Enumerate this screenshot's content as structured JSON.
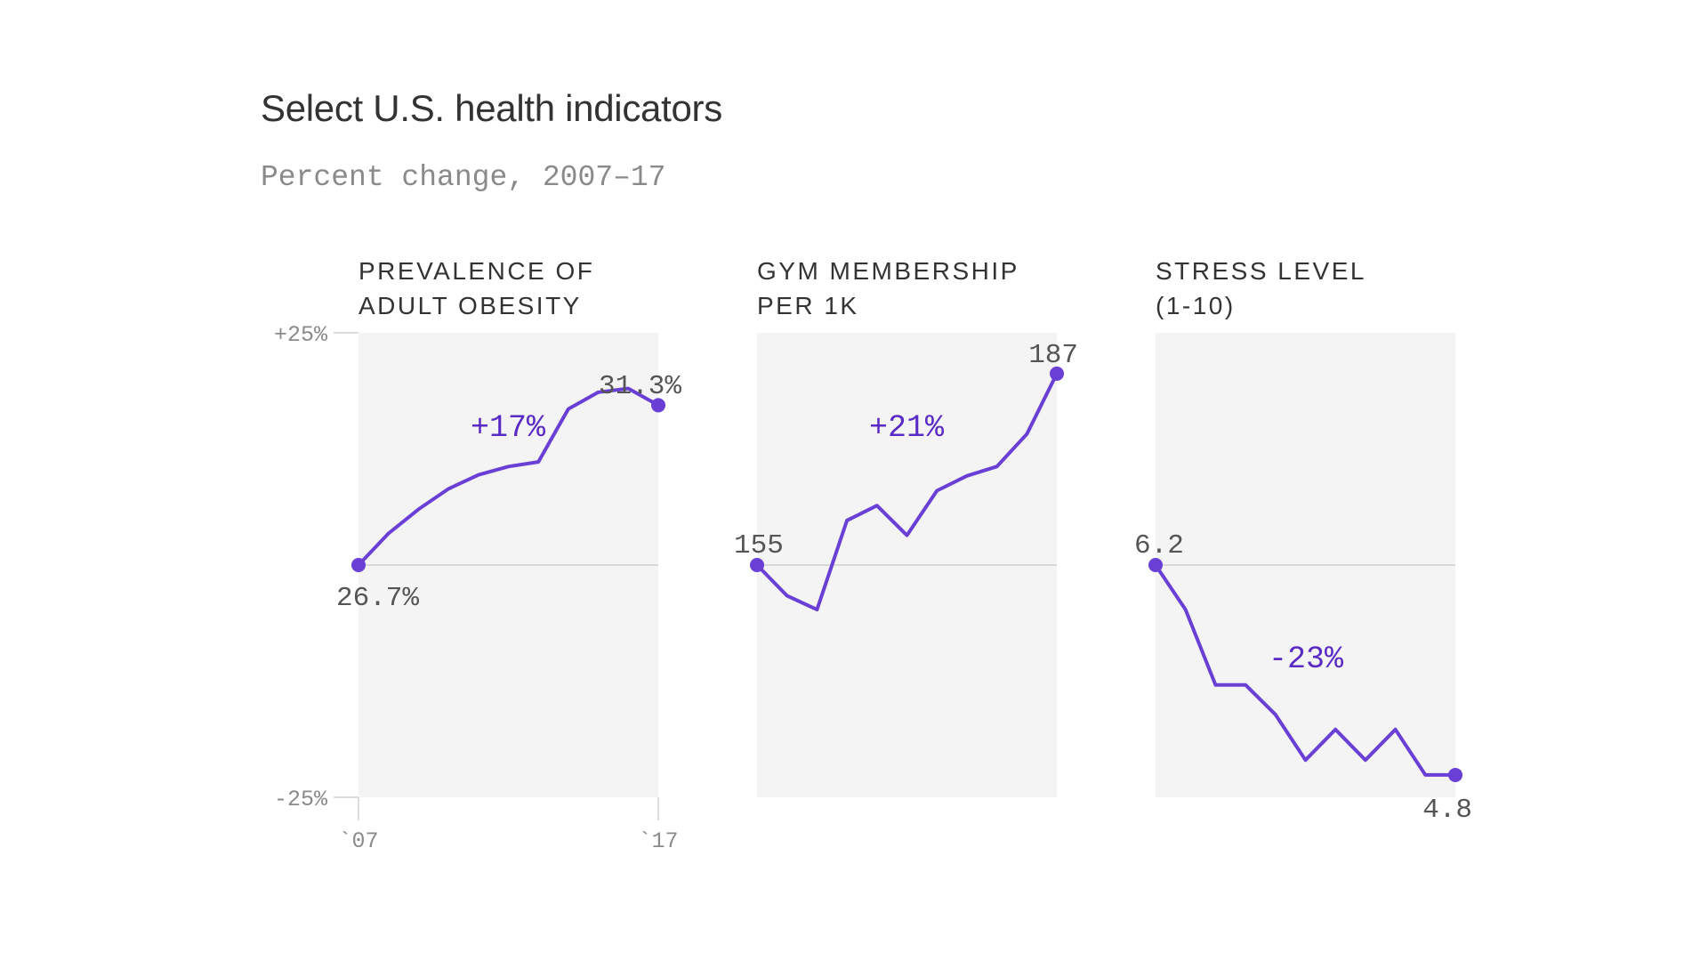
{
  "title": "Select U.S. health indicators",
  "subtitle": "Percent change, 2007–17",
  "colors": {
    "line": "#6a3fd6",
    "change_label": "#5a2bc4",
    "panel_bg": "#f4f4f4",
    "value_label": "#555555",
    "axis_text": "#8a8a8a",
    "baseline": "#c8c8c8"
  },
  "chart_data": [
    {
      "type": "line",
      "title_lines": [
        "PREVALENCE OF",
        "ADULT OBESITY"
      ],
      "x": [
        2007,
        2008,
        2009,
        2010,
        2011,
        2012,
        2013,
        2014,
        2015,
        2016,
        2017
      ],
      "values": [
        0,
        3.4,
        6.0,
        8.2,
        9.7,
        10.6,
        11.1,
        16.8,
        18.6,
        19.0,
        17.2
      ],
      "start_label": "26.7%",
      "end_label": "31.3%",
      "change_label": "+17%",
      "ylim": [
        -25,
        25
      ],
      "yticks": [
        "+25%",
        "-25%"
      ],
      "xticks": [
        "`07",
        "`17"
      ]
    },
    {
      "type": "line",
      "title_lines": [
        "GYM MEMBERSHIP",
        "PER 1K"
      ],
      "x": [
        2007,
        2008,
        2009,
        2010,
        2011,
        2012,
        2013,
        2014,
        2015,
        2016,
        2017
      ],
      "values": [
        0,
        -3.3,
        -4.8,
        4.8,
        6.4,
        3.2,
        8.0,
        9.6,
        10.6,
        14.1,
        20.6
      ],
      "start_label": "155",
      "end_label": "187",
      "change_label": "+21%",
      "ylim": [
        -25,
        25
      ]
    },
    {
      "type": "line",
      "title_lines": [
        "STRESS LEVEL",
        "(1-10)"
      ],
      "x": [
        2007,
        2008,
        2009,
        2010,
        2011,
        2012,
        2013,
        2014,
        2015,
        2016,
        2017
      ],
      "values": [
        0,
        -4.8,
        -12.9,
        -12.9,
        -16.1,
        -21.0,
        -17.7,
        -21.0,
        -17.7,
        -22.6,
        -22.6
      ],
      "start_label": "6.2",
      "end_label": "4.8",
      "change_label": "-23%",
      "ylim": [
        -25,
        25
      ]
    }
  ]
}
